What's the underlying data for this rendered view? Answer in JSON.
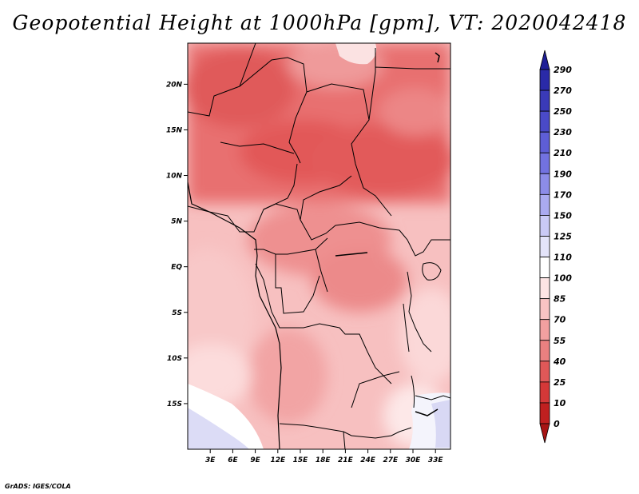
{
  "title": "Geopotential Height at 1000hPa [gpm], VT: 2020042418",
  "credit": "GrADS: IGES/COLA",
  "map": {
    "lat_labels": [
      "20N",
      "15N",
      "10N",
      "5N",
      "EQ",
      "5S",
      "10S",
      "15S"
    ],
    "lon_labels": [
      "3E",
      "6E",
      "9E",
      "12E",
      "15E",
      "18E",
      "21E",
      "24E",
      "27E",
      "30E",
      "33E"
    ],
    "lat_range": [
      -20,
      24.5
    ],
    "lon_range": [
      0,
      35
    ]
  },
  "colorbar": {
    "levels": [
      "290",
      "270",
      "250",
      "230",
      "210",
      "190",
      "170",
      "150",
      "125",
      "110",
      "100",
      "85",
      "70",
      "55",
      "40",
      "25",
      "10",
      "0"
    ],
    "colors": [
      "#1e1e96",
      "#2a2aa8",
      "#3a3ab8",
      "#4a4ac8",
      "#5e5ed6",
      "#7272e0",
      "#8c8ce8",
      "#aaaaf0",
      "#cacaf6",
      "#e4e4fa",
      "#ffffff",
      "#fde4e4",
      "#f9c4c4",
      "#f2a0a0",
      "#e98080",
      "#e05858",
      "#d43838",
      "#c02020",
      "#a81414"
    ]
  }
}
